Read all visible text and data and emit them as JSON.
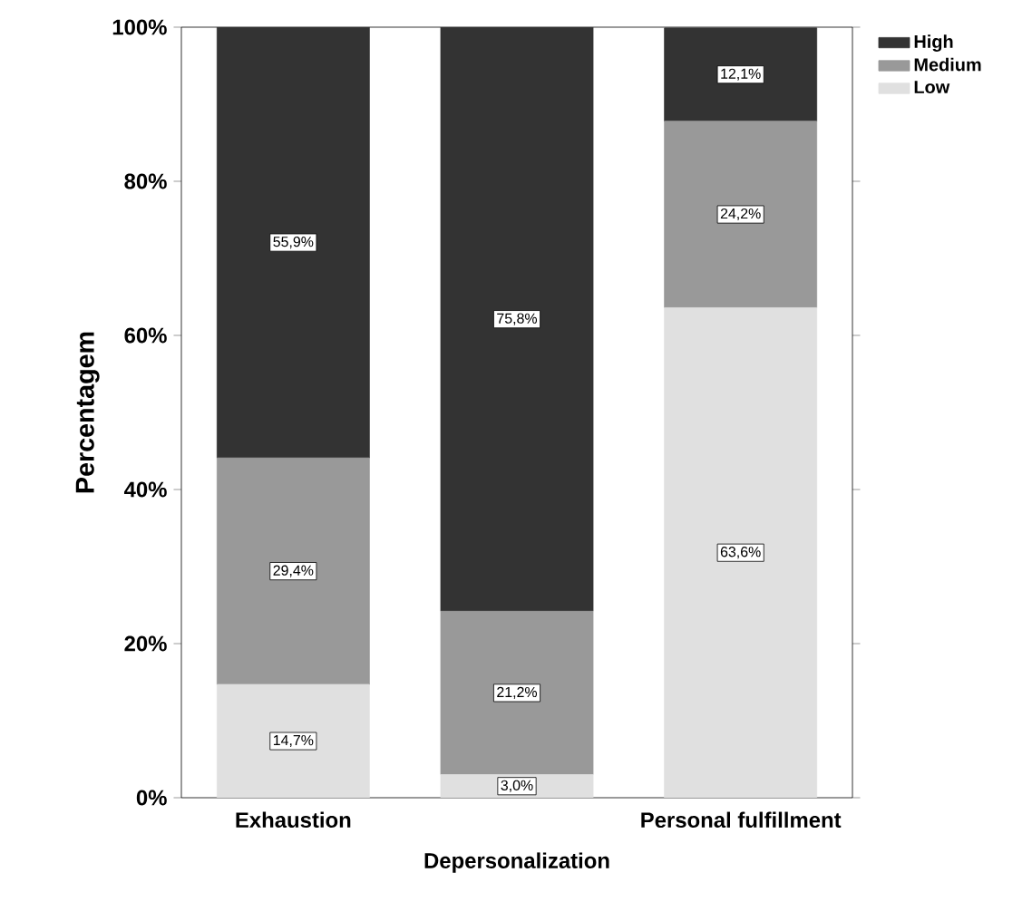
{
  "chart_data": {
    "type": "bar",
    "stacked": true,
    "ylabel": "Percentagem",
    "categories": [
      "Exhaustion",
      "Depersonalization",
      "Personal fulfillment"
    ],
    "series": [
      {
        "name": "Low",
        "color": "#e0e0e0",
        "values": [
          14.7,
          3.0,
          63.6
        ],
        "value_labels": [
          "14,7%",
          "3,0%",
          "63,6%"
        ]
      },
      {
        "name": "Medium",
        "color": "#999999",
        "values": [
          29.4,
          21.2,
          24.2
        ],
        "value_labels": [
          "29,4%",
          "21,2%",
          "24,2%"
        ]
      },
      {
        "name": "High",
        "color": "#333333",
        "values": [
          55.9,
          75.8,
          12.1
        ],
        "value_labels": [
          "55,9%",
          "75,8%",
          "12,1%"
        ]
      }
    ],
    "ylim": [
      0,
      100
    ],
    "yticks": [
      {
        "value": 0,
        "label": "0%"
      },
      {
        "value": 20,
        "label": "20%"
      },
      {
        "value": 40,
        "label": "40%"
      },
      {
        "value": 60,
        "label": "60%"
      },
      {
        "value": 80,
        "label": "80%"
      },
      {
        "value": 100,
        "label": "100%"
      }
    ],
    "legend": "top right",
    "grid": false
  }
}
